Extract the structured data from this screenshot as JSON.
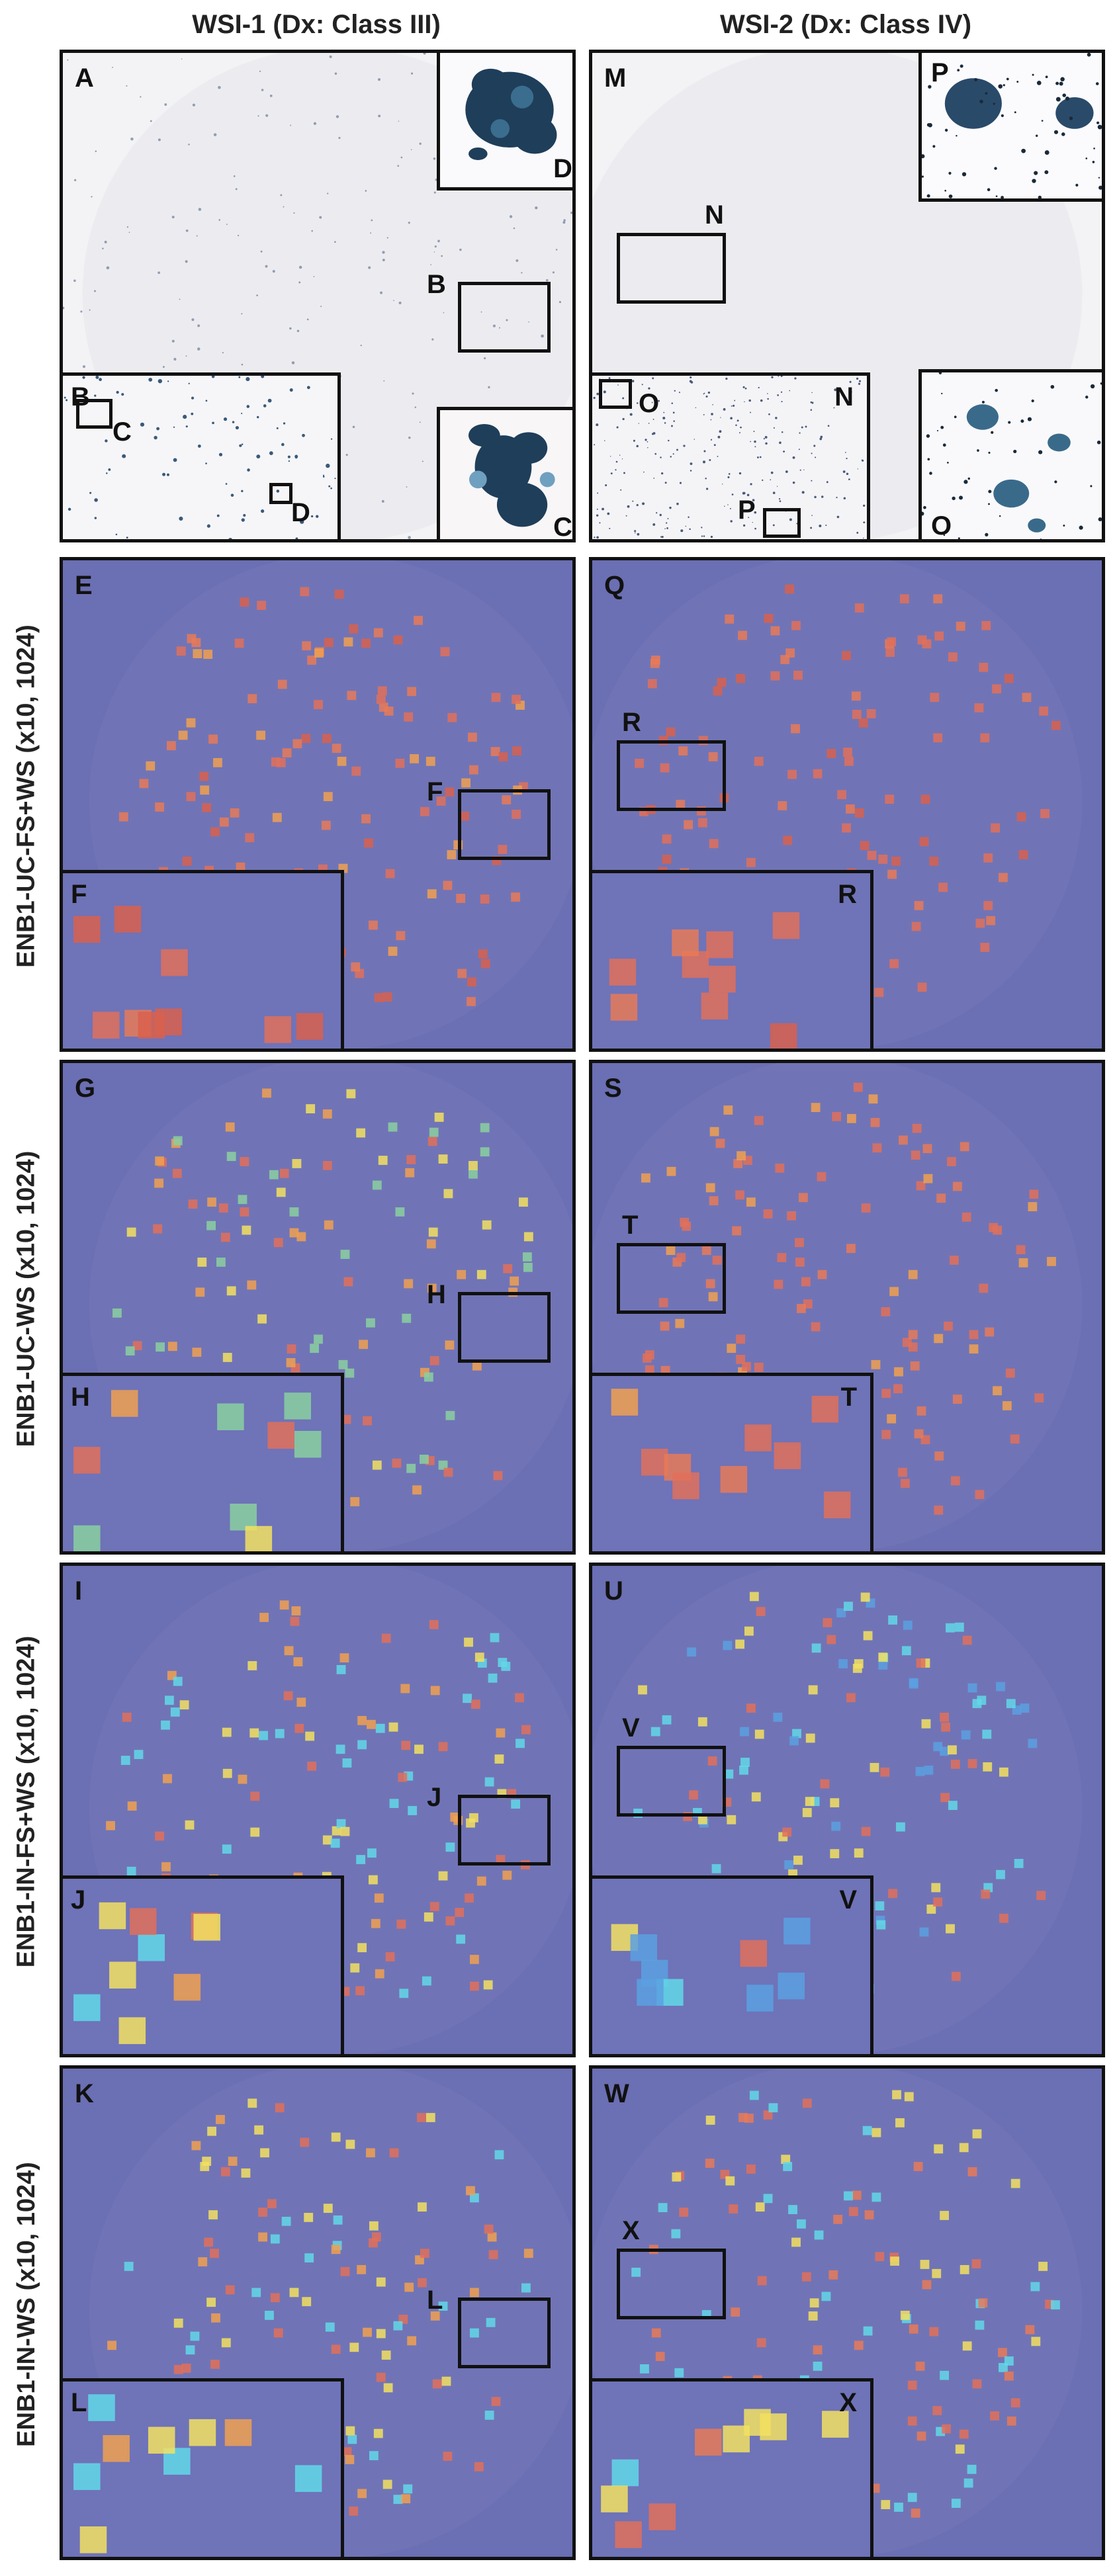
{
  "columns": [
    {
      "title": "WSI-1 (Dx: Class III)"
    },
    {
      "title": "WSI-2 (Dx: Class IV)"
    }
  ],
  "rows": [
    {
      "label": ""
    },
    {
      "label": "ENB1-UC-FS+WS (x10, 1024)"
    },
    {
      "label": "ENB1-UC-WS (x10, 1024)"
    },
    {
      "label": "ENB1-IN-FS+WS (x10, 1024)"
    },
    {
      "label": "ENB1-IN-WS (x10, 1024)"
    }
  ],
  "panels": {
    "row0_left": {
      "main": "A",
      "box": "B",
      "inset_a": "B",
      "inset_a_box1": "C",
      "inset_a_box2": "D",
      "corner_top": "D",
      "corner_bottom": "C"
    },
    "row0_right": {
      "main": "M",
      "box": "N",
      "inset_a": "N",
      "inset_a_box1": "O",
      "inset_a_box2": "P",
      "corner_top": "P",
      "corner_bottom": "O"
    },
    "row1_left": {
      "main": "E",
      "box": "F",
      "inset": "F"
    },
    "row1_right": {
      "main": "Q",
      "box": "R",
      "inset": "R"
    },
    "row2_left": {
      "main": "G",
      "box": "H",
      "inset": "H"
    },
    "row2_right": {
      "main": "S",
      "box": "T",
      "inset": "T"
    },
    "row3_left": {
      "main": "I",
      "box": "J",
      "inset": "J"
    },
    "row3_right": {
      "main": "U",
      "box": "V",
      "inset": "V"
    },
    "row4_left": {
      "main": "K",
      "box": "L",
      "inset": "L"
    },
    "row4_right": {
      "main": "W",
      "box": "X",
      "inset": "X"
    }
  },
  "colors": {
    "heatmap_bg": "#6b6fb3",
    "slide_bg": "#f3f3f5",
    "cell_red": "#e0705a",
    "cell_orange": "#f0a050",
    "cell_yellow": "#f2e060",
    "cell_cyan": "#62d8e8",
    "cell_blue": "#5aa0e0",
    "cell_lightblue": "#8ab8e8"
  }
}
